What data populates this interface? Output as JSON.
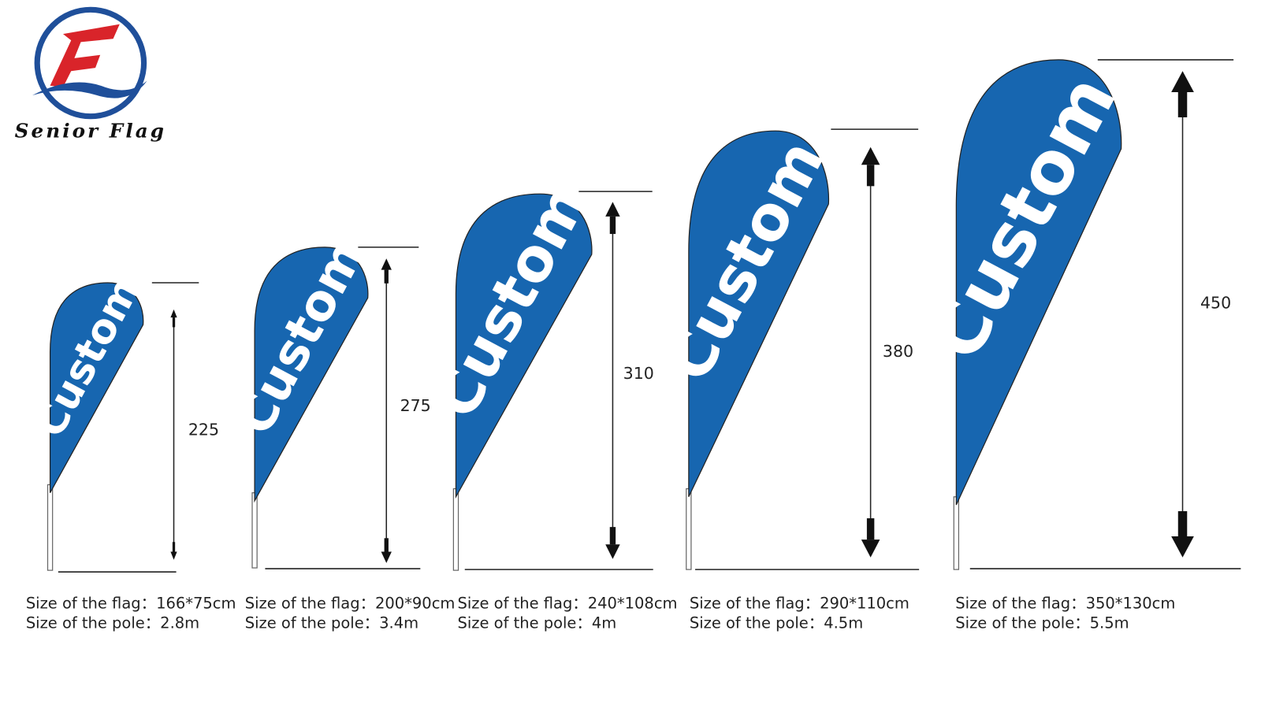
{
  "logo": {
    "text": "Senior Flag"
  },
  "flags": [
    {
      "label": "Custom",
      "height": 225,
      "flag_size": "Size of the flag：166*75cm",
      "pole_size": "Size of the pole：2.8m"
    },
    {
      "label": "Custom",
      "height": 275,
      "flag_size": "Size of the flag：200*90cm",
      "pole_size": "Size of the pole：3.4m"
    },
    {
      "label": "Custom",
      "height": 310,
      "flag_size": "Size of the flag：240*108cm",
      "pole_size": "Size of the pole：4m"
    },
    {
      "label": "Custom",
      "height": 380,
      "flag_size": "Size of the flag：290*110cm",
      "pole_size": "Size of the pole：4.5m"
    },
    {
      "label": "Custom",
      "height": 450,
      "flag_size": "Size of the flag：350*130cm",
      "pole_size": "Size of the pole：5.5m"
    }
  ]
}
